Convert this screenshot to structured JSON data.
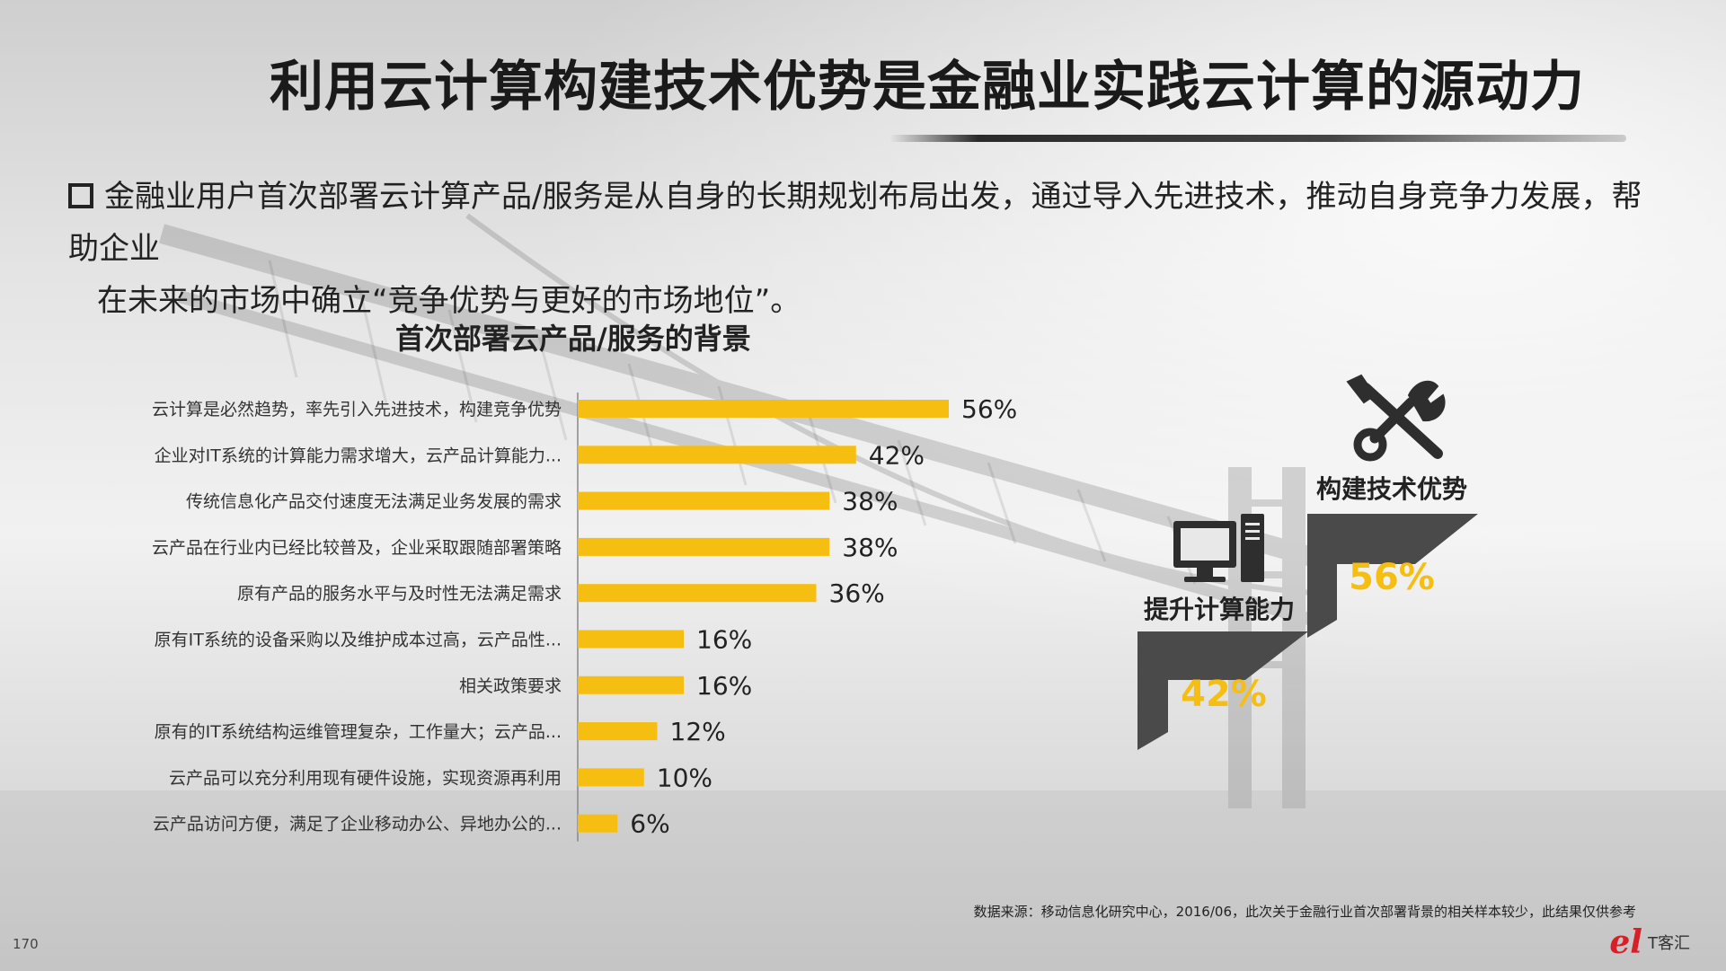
{
  "title": "利用云计算构建技术优势是金融业实践云计算的源动力",
  "intro": {
    "line1": "金融业用户首次部署云计算产品/服务是从自身的长期规划布局出发，通过导入先进技术，推动自身竞争力发展，帮助企业",
    "line2": "在未来的市场中确立“竞争优势与更好的市场地位”。"
  },
  "chart_data": {
    "type": "bar",
    "orientation": "horizontal",
    "title": "首次部署云产品/服务的背景",
    "categories": [
      "云计算是必然趋势，率先引入先进技术，构建竞争优势",
      "企业对IT系统的计算能力需求增大，云产品计算能力...",
      "传统信息化产品交付速度无法满足业务发展的需求",
      "云产品在行业内已经比较普及，企业采取跟随部署策略",
      "原有产品的服务水平与及时性无法满足需求",
      "原有IT系统的设备采购以及维护成本过高，云产品性...",
      "相关政策要求",
      "原有的IT系统结构运维管理复杂，工作量大；云产品...",
      "云产品可以充分利用现有硬件设施，实现资源再利用",
      "云产品访问方便，满足了企业移动办公、异地办公的..."
    ],
    "values": [
      56,
      42,
      38,
      38,
      36,
      16,
      16,
      12,
      10,
      6
    ],
    "value_labels": [
      "56%",
      "42%",
      "38%",
      "38%",
      "36%",
      "16%",
      "16%",
      "12%",
      "10%",
      "6%"
    ],
    "unit": "%",
    "xlim": [
      0,
      60
    ],
    "bar_color": "#f5be10",
    "grid": false
  },
  "stairs": {
    "upper": {
      "label": "构建技术优势",
      "value": "56%",
      "icon": "wrench-screwdriver-icon"
    },
    "lower": {
      "label": "提升计算能力",
      "value": "42%",
      "icon": "computer-icon"
    },
    "colors": {
      "step": "#4a4a4a",
      "value": "#f5be10"
    }
  },
  "footer": {
    "source": "数据来源：移动信息化研究中心，2016/06，此次关于金融行业首次部署背景的相关样本较少，此结果仅供参考",
    "page": "170",
    "logo_mark": "el",
    "logo_text": "T客汇"
  }
}
